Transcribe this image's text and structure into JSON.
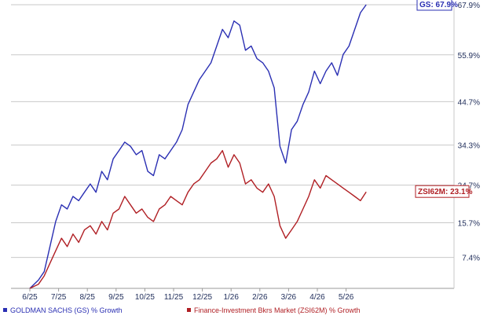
{
  "chart_data": {
    "type": "line",
    "x_ticks": [
      "6/25",
      "7/25",
      "8/25",
      "9/25",
      "10/25",
      "11/25",
      "12/25",
      "1/26",
      "2/26",
      "3/26",
      "4/26",
      "5/26"
    ],
    "y_ticks": [
      "7.4%",
      "15.7%",
      "24.7%",
      "34.3%",
      "44.7%",
      "55.9%",
      "67.9%"
    ],
    "ylim": [
      0,
      67.9
    ],
    "grid": "horizontal",
    "legend_position": "bottom",
    "colors": {
      "gs": "#2a2fb3",
      "zsi": "#b01f24",
      "grid": "#c8c8c8"
    },
    "series": [
      {
        "key": "gs",
        "legend": "GOLDMAN SACHS (GS) % Growth",
        "callout": "GS: 67.9%",
        "x": [
          0,
          0.3,
          0.5,
          0.7,
          0.9,
          1.1,
          1.3,
          1.5,
          1.7,
          1.9,
          2.1,
          2.3,
          2.5,
          2.7,
          2.9,
          3.1,
          3.3,
          3.5,
          3.7,
          3.9,
          4.1,
          4.3,
          4.5,
          4.7,
          4.9,
          5.1,
          5.3,
          5.5,
          5.7,
          5.9,
          6.1,
          6.3,
          6.5,
          6.7,
          6.9,
          7.1,
          7.3,
          7.5,
          7.7,
          7.9,
          8.1,
          8.3,
          8.5,
          8.7,
          8.9,
          9.1,
          9.3,
          9.5,
          9.7,
          9.9,
          10.1,
          10.3,
          10.5,
          10.7,
          10.9,
          11.1,
          11.3,
          11.5,
          11.7
        ],
        "values": [
          0,
          2,
          4,
          10,
          16,
          20,
          19,
          22,
          21,
          23,
          25,
          23,
          28,
          26,
          31,
          33,
          35,
          34,
          32,
          33,
          28,
          27,
          32,
          31,
          33,
          35,
          38,
          44,
          47,
          50,
          52,
          54,
          58,
          62,
          60,
          64,
          63,
          57,
          58,
          55,
          54,
          52,
          48,
          34,
          30,
          38,
          40,
          44,
          47,
          52,
          49,
          52,
          54,
          51,
          56,
          58,
          62,
          66,
          67.9
        ]
      },
      {
        "key": "zsi",
        "legend": "Finance-Investment Bkrs Market (ZSI62M) % Growth",
        "callout": "ZSI62M: 23.1%",
        "x": [
          0,
          0.3,
          0.5,
          0.7,
          0.9,
          1.1,
          1.3,
          1.5,
          1.7,
          1.9,
          2.1,
          2.3,
          2.5,
          2.7,
          2.9,
          3.1,
          3.3,
          3.5,
          3.7,
          3.9,
          4.1,
          4.3,
          4.5,
          4.7,
          4.9,
          5.1,
          5.3,
          5.5,
          5.7,
          5.9,
          6.1,
          6.3,
          6.5,
          6.7,
          6.9,
          7.1,
          7.3,
          7.5,
          7.7,
          7.9,
          8.1,
          8.3,
          8.5,
          8.7,
          8.9,
          9.1,
          9.3,
          9.5,
          9.7,
          9.9,
          10.1,
          10.3,
          10.5,
          10.7,
          10.9,
          11.1,
          11.3,
          11.5,
          11.7
        ],
        "values": [
          0,
          1,
          3,
          6,
          9,
          12,
          10,
          13,
          11,
          14,
          15,
          13,
          16,
          14,
          18,
          19,
          22,
          20,
          18,
          19,
          17,
          16,
          19,
          20,
          22,
          21,
          20,
          23,
          25,
          26,
          28,
          30,
          31,
          33,
          29,
          32,
          30,
          25,
          26,
          24,
          23,
          25,
          22,
          15,
          12,
          14,
          16,
          19,
          22,
          26,
          24,
          27,
          26,
          25,
          24,
          23,
          22,
          21,
          23.1
        ]
      }
    ]
  }
}
